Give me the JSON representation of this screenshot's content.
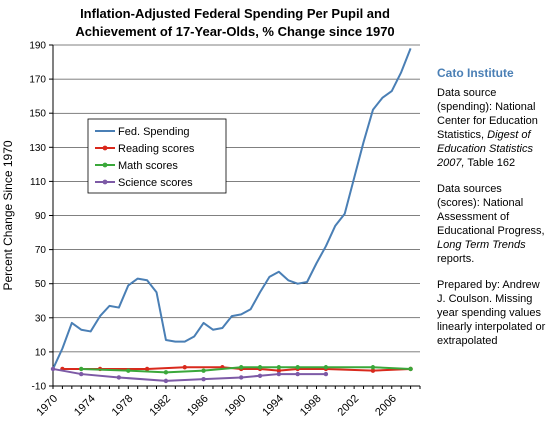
{
  "title": {
    "line1": "Inflation-Adjusted Federal Spending Per Pupil and",
    "line2": "Achievement of 17-Year-Olds,  % Change since 1970"
  },
  "sidebar": {
    "org": "Cato Institute",
    "spending_source": {
      "prefix": "Data source (spending): National Center for Education Statistics,",
      "italic": "Digest of Education Statistics 2007,",
      "suffix": "Table 162"
    },
    "scores_source": {
      "prefix": "Data sources (scores): National Assessment of Educational Progress,",
      "italic": "Long Term Trends",
      "suffix": "reports."
    },
    "prepared": "Prepared by: Andrew J. Coulson. Missing year spending values linearly interpolated or extrapolated"
  },
  "colors": {
    "fed": "#4a7fb5",
    "reading": "#d9291c",
    "math": "#3aa83a",
    "science": "#7d5aa6",
    "grid": "#000000",
    "axis": "#000000"
  },
  "chart_data": {
    "type": "line",
    "title": "Inflation-Adjusted Federal Spending Per Pupil and Achievement of 17-Year-Olds,  % Change since 1970",
    "xlabel": "",
    "ylabel": "Percent Change Since 1970",
    "xlim": [
      1970,
      2009
    ],
    "ylim": [
      -10,
      190
    ],
    "yticks": [
      -10,
      10,
      30,
      50,
      70,
      90,
      110,
      130,
      150,
      170,
      190
    ],
    "xticks": [
      1970,
      1974,
      1978,
      1982,
      1986,
      1990,
      1994,
      1998,
      2002,
      2006
    ],
    "grid": "horizontal",
    "legend_position": "upper-left",
    "series": [
      {
        "name": "Fed. Spending",
        "color_key": "fed",
        "x": [
          1970,
          1971,
          1972,
          1973,
          1974,
          1975,
          1976,
          1977,
          1978,
          1979,
          1980,
          1981,
          1982,
          1983,
          1984,
          1985,
          1986,
          1987,
          1988,
          1989,
          1990,
          1991,
          1992,
          1993,
          1994,
          1995,
          1996,
          1997,
          1998,
          1999,
          2000,
          2001,
          2002,
          2003,
          2004,
          2005,
          2006,
          2007,
          2008
        ],
        "y": [
          0,
          12,
          27,
          23,
          22,
          31,
          37,
          36,
          49,
          53,
          52,
          45,
          17,
          16,
          16,
          19,
          27,
          23,
          24,
          31,
          32,
          35,
          45,
          54,
          57,
          52,
          50,
          51,
          62,
          72,
          84,
          91,
          112,
          133,
          152,
          159,
          163,
          174,
          188
        ],
        "marker": false
      },
      {
        "name": "Reading scores",
        "color_key": "reading",
        "x": [
          1971,
          1975,
          1980,
          1984,
          1988,
          1990,
          1992,
          1994,
          1996,
          1999,
          2004,
          2008
        ],
        "y": [
          0,
          0,
          0,
          1,
          1,
          0,
          0,
          -1,
          0,
          0,
          -1,
          0
        ],
        "marker": true
      },
      {
        "name": "Math scores",
        "color_key": "math",
        "x": [
          1973,
          1978,
          1982,
          1986,
          1990,
          1992,
          1994,
          1996,
          1999,
          2004,
          2008
        ],
        "y": [
          0,
          -1,
          -2,
          -1,
          1,
          1,
          1,
          1,
          1,
          1,
          0
        ],
        "marker": true
      },
      {
        "name": "Science scores",
        "color_key": "science",
        "x": [
          1970,
          1973,
          1977,
          1982,
          1986,
          1990,
          1992,
          1994,
          1996,
          1999
        ],
        "y": [
          0,
          -3,
          -5,
          -7,
          -6,
          -5,
          -4,
          -3,
          -3,
          -3
        ],
        "marker": true
      }
    ]
  }
}
